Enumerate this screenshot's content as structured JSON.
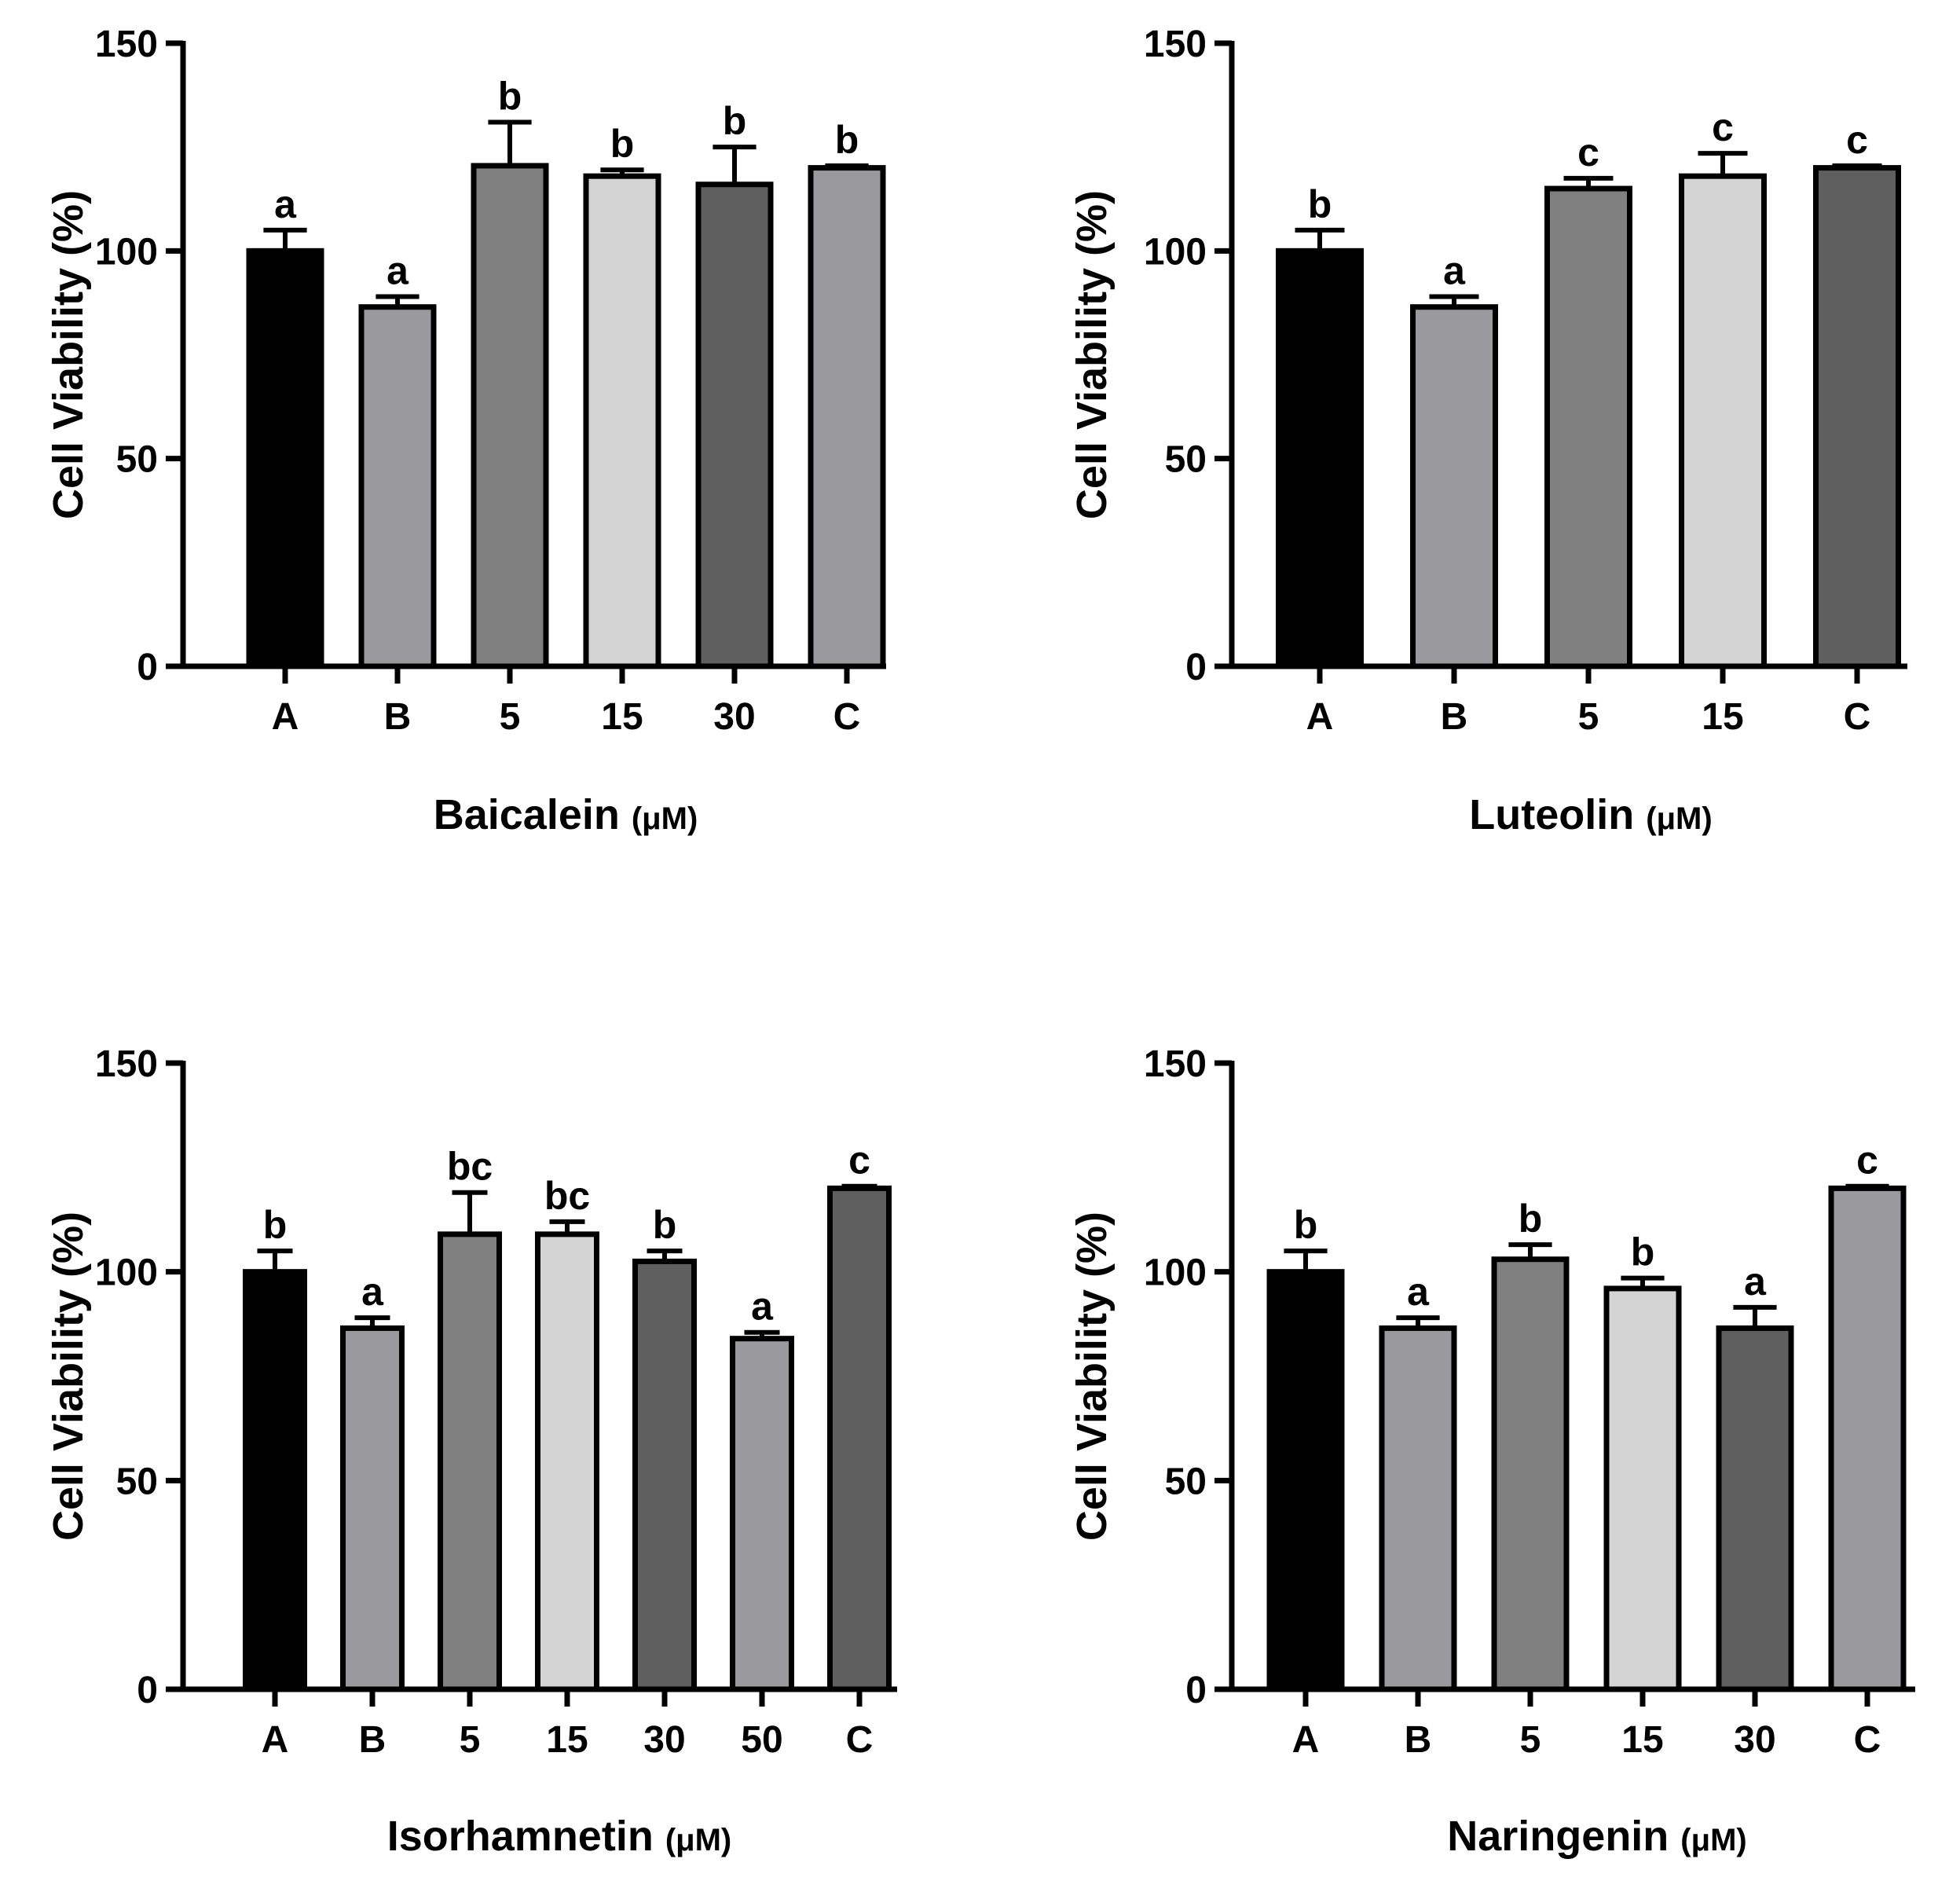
{
  "palette": {
    "black": "#000000",
    "mid": "#9a9a9e",
    "gray": "#808080",
    "light": "#d4d4d4",
    "dark": "#5f5f5f"
  },
  "chart_data": [
    {
      "type": "bar",
      "title": "",
      "xlabel": "Baicalein",
      "xlabel_unit": "(μM)",
      "ylabel": "Cell Viability (%)",
      "ylim": [
        0,
        150
      ],
      "yticks": [
        "0",
        "50",
        "100",
        "150"
      ],
      "categories": [
        "A",
        "B",
        "5",
        "15",
        "30",
        "C"
      ],
      "values": [
        100,
        86.5,
        120.5,
        118,
        116,
        120
      ],
      "errors": [
        5,
        2.5,
        10.5,
        1.5,
        9,
        0.5
      ],
      "significance": [
        "a",
        "a",
        "b",
        "b",
        "b",
        "b"
      ],
      "colors": [
        "black",
        "mid",
        "gray",
        "light",
        "dark",
        "mid"
      ]
    },
    {
      "type": "bar",
      "title": "",
      "xlabel": "Luteolin",
      "xlabel_unit": "(μM)",
      "ylabel": "Cell Viability (%)",
      "ylim": [
        0,
        150
      ],
      "yticks": [
        "0",
        "50",
        "100",
        "150"
      ],
      "categories": [
        "A",
        "B",
        "5",
        "15",
        "C"
      ],
      "values": [
        100,
        86.5,
        115,
        118,
        120
      ],
      "errors": [
        5,
        2.5,
        2.5,
        5.5,
        0.5
      ],
      "significance": [
        "b",
        "a",
        "c",
        "c",
        "c"
      ],
      "colors": [
        "black",
        "mid",
        "gray",
        "light",
        "dark"
      ]
    },
    {
      "type": "bar",
      "title": "",
      "xlabel": "Isorhamnetin",
      "xlabel_unit": "(μM)",
      "ylabel": "Cell Viability (%)",
      "ylim": [
        0,
        150
      ],
      "yticks": [
        "0",
        "50",
        "100",
        "150"
      ],
      "categories": [
        "A",
        "B",
        "5",
        "15",
        "30",
        "50",
        "C"
      ],
      "values": [
        100,
        86.5,
        109,
        109,
        102.5,
        84,
        120
      ],
      "errors": [
        5,
        2.5,
        10,
        3,
        2.5,
        1.5,
        0.5
      ],
      "significance": [
        "b",
        "a",
        "bc",
        "bc",
        "b",
        "a",
        "c"
      ],
      "colors": [
        "black",
        "mid",
        "gray",
        "light",
        "dark",
        "mid",
        "dark"
      ]
    },
    {
      "type": "bar",
      "title": "",
      "xlabel": "Naringenin",
      "xlabel_unit": "(μM)",
      "ylabel": "Cell Viability (%)",
      "ylim": [
        0,
        150
      ],
      "yticks": [
        "0",
        "50",
        "100",
        "150"
      ],
      "categories": [
        "A",
        "B",
        "5",
        "15",
        "30",
        "C"
      ],
      "values": [
        100,
        86.5,
        103,
        96,
        86.5,
        120
      ],
      "errors": [
        5,
        2.5,
        3.5,
        2.5,
        5,
        0.5
      ],
      "significance": [
        "b",
        "a",
        "b",
        "b",
        "a",
        "c"
      ],
      "colors": [
        "black",
        "mid",
        "gray",
        "light",
        "dark",
        "mid"
      ]
    }
  ]
}
